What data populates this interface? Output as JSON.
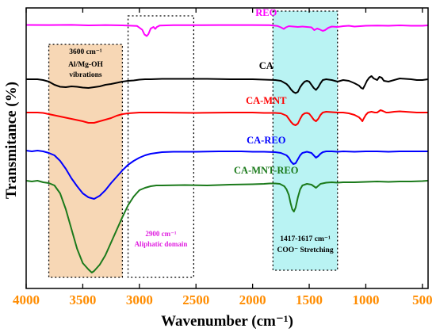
{
  "chart_data": {
    "type": "line",
    "xlabel": "Wavenumber (cm⁻¹)",
    "ylabel": "Transmitance (%)",
    "xlim": [
      4000,
      450
    ],
    "x_reversed": true,
    "xticks": [
      4000,
      3500,
      3000,
      2500,
      2000,
      1500,
      1000,
      500
    ],
    "yticks_shown": false,
    "grid": false,
    "series": [
      {
        "name": "REO",
        "color": "#ff00ff",
        "points": [
          [
            4000,
            0.5
          ],
          [
            3800,
            0.6
          ],
          [
            3600,
            0.4
          ],
          [
            3450,
            1.0
          ],
          [
            3300,
            0.6
          ],
          [
            3150,
            1.0
          ],
          [
            3020,
            1.8
          ],
          [
            2975,
            6.5
          ],
          [
            2955,
            12.5
          ],
          [
            2935,
            14.5
          ],
          [
            2920,
            12
          ],
          [
            2900,
            5
          ],
          [
            2875,
            3
          ],
          [
            2860,
            5.5
          ],
          [
            2845,
            3
          ],
          [
            2820,
            1.2
          ],
          [
            2700,
            0.8
          ],
          [
            2500,
            0.8
          ],
          [
            2300,
            0.6
          ],
          [
            2000,
            0.6
          ],
          [
            1850,
            0.8
          ],
          [
            1780,
            1.8
          ],
          [
            1750,
            3.5
          ],
          [
            1725,
            5.5
          ],
          [
            1705,
            3.5
          ],
          [
            1680,
            2
          ],
          [
            1640,
            2.5
          ],
          [
            1600,
            3
          ],
          [
            1560,
            2.5
          ],
          [
            1480,
            3.5
          ],
          [
            1455,
            7
          ],
          [
            1430,
            5
          ],
          [
            1410,
            6
          ],
          [
            1380,
            8
          ],
          [
            1360,
            7
          ],
          [
            1330,
            4
          ],
          [
            1300,
            2.5
          ],
          [
            1250,
            3
          ],
          [
            1200,
            2
          ],
          [
            1150,
            1.5
          ],
          [
            1100,
            2.5
          ],
          [
            1050,
            2
          ],
          [
            1000,
            1.5
          ],
          [
            900,
            1.2
          ],
          [
            800,
            1.5
          ],
          [
            700,
            1
          ],
          [
            600,
            1.5
          ],
          [
            500,
            1.5
          ],
          [
            450,
            1
          ]
        ]
      },
      {
        "name": "CA",
        "color": "#000000",
        "points": [
          [
            4000,
            63
          ],
          [
            3900,
            63
          ],
          [
            3850,
            64
          ],
          [
            3800,
            66
          ],
          [
            3750,
            70
          ],
          [
            3700,
            72.5
          ],
          [
            3650,
            73
          ],
          [
            3600,
            72
          ],
          [
            3550,
            72.5
          ],
          [
            3500,
            73.5
          ],
          [
            3450,
            74
          ],
          [
            3400,
            73
          ],
          [
            3350,
            72
          ],
          [
            3300,
            70
          ],
          [
            3250,
            69
          ],
          [
            3200,
            67.5
          ],
          [
            3150,
            66
          ],
          [
            3100,
            65
          ],
          [
            3050,
            64.5
          ],
          [
            3000,
            63.5
          ],
          [
            2950,
            63
          ],
          [
            2900,
            63
          ],
          [
            2800,
            62.5
          ],
          [
            2600,
            62.5
          ],
          [
            2400,
            62.5
          ],
          [
            2200,
            63
          ],
          [
            2000,
            63
          ],
          [
            1900,
            63.5
          ],
          [
            1800,
            64
          ],
          [
            1750,
            65
          ],
          [
            1700,
            69
          ],
          [
            1680,
            72
          ],
          [
            1660,
            76
          ],
          [
            1640,
            79
          ],
          [
            1620,
            80.5
          ],
          [
            1600,
            79
          ],
          [
            1580,
            73
          ],
          [
            1560,
            69
          ],
          [
            1540,
            66
          ],
          [
            1520,
            65
          ],
          [
            1500,
            66
          ],
          [
            1480,
            70
          ],
          [
            1460,
            74
          ],
          [
            1440,
            76.5
          ],
          [
            1420,
            73
          ],
          [
            1400,
            68
          ],
          [
            1380,
            64
          ],
          [
            1350,
            63
          ],
          [
            1300,
            64
          ],
          [
            1250,
            66
          ],
          [
            1200,
            64
          ],
          [
            1150,
            65
          ],
          [
            1100,
            68
          ],
          [
            1060,
            71
          ],
          [
            1040,
            74
          ],
          [
            1025,
            75
          ],
          [
            1010,
            71
          ],
          [
            990,
            65
          ],
          [
            970,
            61
          ],
          [
            950,
            59
          ],
          [
            930,
            62
          ],
          [
            900,
            64
          ],
          [
            880,
            60
          ],
          [
            860,
            61
          ],
          [
            840,
            65
          ],
          [
            800,
            66
          ],
          [
            750,
            64
          ],
          [
            700,
            62
          ],
          [
            650,
            62.5
          ],
          [
            600,
            63
          ],
          [
            550,
            64
          ],
          [
            500,
            64
          ],
          [
            450,
            63
          ]
        ]
      },
      {
        "name": "CA-MNT",
        "color": "#ff0000",
        "points": [
          [
            4000,
            110
          ],
          [
            3900,
            110
          ],
          [
            3850,
            110.5
          ],
          [
            3800,
            112
          ],
          [
            3700,
            115
          ],
          [
            3600,
            118
          ],
          [
            3500,
            121
          ],
          [
            3450,
            123
          ],
          [
            3400,
            123
          ],
          [
            3350,
            121
          ],
          [
            3300,
            119
          ],
          [
            3250,
            117
          ],
          [
            3200,
            114
          ],
          [
            3150,
            112
          ],
          [
            3100,
            111
          ],
          [
            3050,
            110.5
          ],
          [
            3000,
            110
          ],
          [
            2800,
            110
          ],
          [
            2500,
            110.5
          ],
          [
            2200,
            110
          ],
          [
            2000,
            110
          ],
          [
            1900,
            110.5
          ],
          [
            1800,
            110.5
          ],
          [
            1750,
            111
          ],
          [
            1700,
            114
          ],
          [
            1680,
            118
          ],
          [
            1660,
            122
          ],
          [
            1640,
            125
          ],
          [
            1620,
            126
          ],
          [
            1600,
            124
          ],
          [
            1580,
            118
          ],
          [
            1560,
            113
          ],
          [
            1540,
            111
          ],
          [
            1520,
            110.5
          ],
          [
            1500,
            111.5
          ],
          [
            1480,
            115
          ],
          [
            1460,
            119
          ],
          [
            1440,
            121
          ],
          [
            1420,
            118
          ],
          [
            1400,
            113
          ],
          [
            1380,
            110
          ],
          [
            1350,
            109
          ],
          [
            1300,
            109.5
          ],
          [
            1250,
            110
          ],
          [
            1200,
            110
          ],
          [
            1150,
            111
          ],
          [
            1100,
            113
          ],
          [
            1060,
            116
          ],
          [
            1040,
            119
          ],
          [
            1030,
            121
          ],
          [
            1020,
            118
          ],
          [
            1000,
            113
          ],
          [
            980,
            110
          ],
          [
            950,
            109
          ],
          [
            920,
            110
          ],
          [
            900,
            110
          ],
          [
            870,
            107
          ],
          [
            850,
            108
          ],
          [
            820,
            110
          ],
          [
            800,
            110
          ],
          [
            750,
            109
          ],
          [
            700,
            108.5
          ],
          [
            650,
            109
          ],
          [
            600,
            109.5
          ],
          [
            550,
            110
          ],
          [
            500,
            110
          ],
          [
            450,
            110
          ]
        ]
      },
      {
        "name": "CA-REO",
        "color": "#0000ff",
        "points": [
          [
            4000,
            157
          ],
          [
            3950,
            158
          ],
          [
            3900,
            157
          ],
          [
            3850,
            158
          ],
          [
            3800,
            160
          ],
          [
            3750,
            163
          ],
          [
            3700,
            170
          ],
          [
            3650,
            180
          ],
          [
            3600,
            192
          ],
          [
            3550,
            202
          ],
          [
            3500,
            211
          ],
          [
            3450,
            216
          ],
          [
            3400,
            218
          ],
          [
            3350,
            214
          ],
          [
            3300,
            207
          ],
          [
            3250,
            198
          ],
          [
            3200,
            190
          ],
          [
            3150,
            182
          ],
          [
            3100,
            175
          ],
          [
            3050,
            170
          ],
          [
            3000,
            166
          ],
          [
            2950,
            163
          ],
          [
            2900,
            161
          ],
          [
            2850,
            160
          ],
          [
            2800,
            159
          ],
          [
            2700,
            158.5
          ],
          [
            2500,
            158.5
          ],
          [
            2300,
            158
          ],
          [
            2100,
            158
          ],
          [
            2000,
            158.5
          ],
          [
            1900,
            158.5
          ],
          [
            1800,
            159
          ],
          [
            1750,
            160
          ],
          [
            1700,
            163
          ],
          [
            1680,
            166
          ],
          [
            1660,
            171
          ],
          [
            1640,
            174
          ],
          [
            1620,
            173
          ],
          [
            1600,
            168
          ],
          [
            1580,
            163
          ],
          [
            1560,
            160
          ],
          [
            1520,
            158.5
          ],
          [
            1480,
            160
          ],
          [
            1460,
            163
          ],
          [
            1440,
            166
          ],
          [
            1420,
            164
          ],
          [
            1400,
            161
          ],
          [
            1380,
            159
          ],
          [
            1350,
            158
          ],
          [
            1300,
            158
          ],
          [
            1250,
            158.5
          ],
          [
            1200,
            158
          ],
          [
            1100,
            158.5
          ],
          [
            1000,
            158
          ],
          [
            900,
            158
          ],
          [
            800,
            158.5
          ],
          [
            700,
            158
          ],
          [
            600,
            158
          ],
          [
            500,
            158
          ],
          [
            450,
            158
          ]
        ]
      },
      {
        "name": "CA-MNT-REO",
        "color": "#1b7a1b",
        "points": [
          [
            4000,
            194
          ],
          [
            3950,
            195
          ],
          [
            3900,
            194
          ],
          [
            3850,
            196
          ],
          [
            3800,
            197
          ],
          [
            3750,
            200
          ],
          [
            3700,
            210
          ],
          [
            3650,
            230
          ],
          [
            3600,
            255
          ],
          [
            3550,
            280
          ],
          [
            3500,
            298
          ],
          [
            3450,
            306
          ],
          [
            3420,
            310
          ],
          [
            3400,
            308
          ],
          [
            3350,
            300
          ],
          [
            3300,
            288
          ],
          [
            3250,
            272
          ],
          [
            3200,
            256
          ],
          [
            3150,
            240
          ],
          [
            3100,
            225
          ],
          [
            3050,
            214
          ],
          [
            3000,
            206
          ],
          [
            2950,
            203
          ],
          [
            2900,
            201
          ],
          [
            2850,
            200
          ],
          [
            2800,
            200
          ],
          [
            2600,
            199.5
          ],
          [
            2400,
            200
          ],
          [
            2200,
            199
          ],
          [
            2000,
            198.5
          ],
          [
            1900,
            198
          ],
          [
            1850,
            197.5
          ],
          [
            1800,
            197.5
          ],
          [
            1760,
            198
          ],
          [
            1720,
            201
          ],
          [
            1700,
            205
          ],
          [
            1680,
            212
          ],
          [
            1665,
            222
          ],
          [
            1650,
            230
          ],
          [
            1635,
            233
          ],
          [
            1620,
            228
          ],
          [
            1600,
            215
          ],
          [
            1580,
            205
          ],
          [
            1560,
            200
          ],
          [
            1520,
            198
          ],
          [
            1480,
            199
          ],
          [
            1460,
            201
          ],
          [
            1440,
            203
          ],
          [
            1420,
            200.5
          ],
          [
            1400,
            198
          ],
          [
            1350,
            196.5
          ],
          [
            1300,
            196
          ],
          [
            1250,
            196.5
          ],
          [
            1200,
            196
          ],
          [
            1100,
            196
          ],
          [
            1000,
            195.5
          ],
          [
            900,
            195
          ],
          [
            800,
            195.5
          ],
          [
            700,
            195
          ],
          [
            600,
            195
          ],
          [
            500,
            194.5
          ],
          [
            450,
            194
          ]
        ]
      }
    ],
    "annotations": [
      {
        "name": "3600-band-box",
        "x_range": [
          3800,
          3150
        ],
        "fill": "#f7d7b5",
        "lines": [
          "3600 cm⁻¹",
          "Al/Mg-OH",
          "vibrations"
        ],
        "color": "#000000"
      },
      {
        "name": "2900-band-box",
        "x_range": [
          3100,
          2520
        ],
        "fill": "none",
        "lines": [
          "2900 cm⁻¹",
          "Aliphatic domain"
        ],
        "color": "#e020e0"
      },
      {
        "name": "1417-1617-band-box",
        "x_range": [
          1820,
          1250
        ],
        "fill": "#b9f3f3",
        "lines": [
          "1417-1617 cm⁻¹",
          "COO⁻ Stretching"
        ],
        "color": "#000000"
      }
    ]
  }
}
